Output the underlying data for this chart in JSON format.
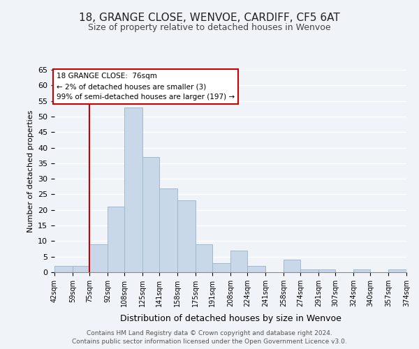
{
  "title": "18, GRANGE CLOSE, WENVOE, CARDIFF, CF5 6AT",
  "subtitle": "Size of property relative to detached houses in Wenvoe",
  "xlabel": "Distribution of detached houses by size in Wenvoe",
  "ylabel": "Number of detached properties",
  "bar_color": "#c8d8e8",
  "bar_edge_color": "#a0b8cc",
  "background_color": "#f0f4f8",
  "plot_bg_color": "#f0f4f8",
  "grid_color": "#ffffff",
  "bin_edges": [
    42,
    59,
    75,
    92,
    108,
    125,
    141,
    158,
    175,
    191,
    208,
    224,
    241,
    258,
    274,
    291,
    307,
    324,
    340,
    357,
    374
  ],
  "bin_labels": [
    "42sqm",
    "59sqm",
    "75sqm",
    "92sqm",
    "108sqm",
    "125sqm",
    "141sqm",
    "158sqm",
    "175sqm",
    "191sqm",
    "208sqm",
    "224sqm",
    "241sqm",
    "258sqm",
    "274sqm",
    "291sqm",
    "307sqm",
    "324sqm",
    "340sqm",
    "357sqm",
    "374sqm"
  ],
  "counts": [
    2,
    2,
    9,
    21,
    53,
    37,
    27,
    23,
    9,
    3,
    7,
    2,
    0,
    4,
    1,
    1,
    0,
    1,
    0,
    1
  ],
  "ylim": [
    0,
    65
  ],
  "yticks": [
    0,
    5,
    10,
    15,
    20,
    25,
    30,
    35,
    40,
    45,
    50,
    55,
    60,
    65
  ],
  "property_line_x": 75,
  "annotation_title": "18 GRANGE CLOSE:  76sqm",
  "annotation_line1": "← 2% of detached houses are smaller (3)",
  "annotation_line2": "99% of semi-detached houses are larger (197) →",
  "annotation_box_color": "#ffffff",
  "annotation_box_edge": "#cc0000",
  "property_line_color": "#cc0000",
  "footer1": "Contains HM Land Registry data © Crown copyright and database right 2024.",
  "footer2": "Contains public sector information licensed under the Open Government Licence v3.0."
}
